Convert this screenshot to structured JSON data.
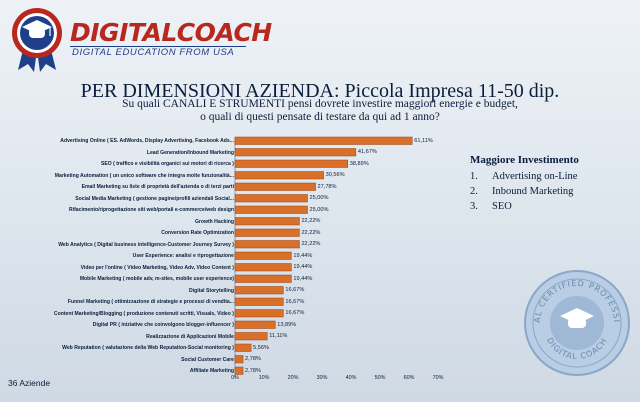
{
  "brand": {
    "title_part1": "DIGITAL",
    "title_part2": "COACH",
    "subtitle": "DIGITAL EDUCATION FROM USA"
  },
  "title": "PER DIMENSIONI AZIENDA: Piccola Impresa 11-50 dip.",
  "subtitle_line1": "Su quali CANALI E STRUMENTI pensi dovrete investire maggiori energie e budget,",
  "subtitle_line2": "o quali di questi pensate di testare da qui ad 1 anno?",
  "legend": {
    "title": "Maggiore Investimento",
    "items": [
      {
        "num": "1.",
        "label": "Advertising on-Line"
      },
      {
        "num": "2.",
        "label": "Inbound Marketing"
      },
      {
        "num": "3.",
        "label": "SEO"
      }
    ]
  },
  "footer": "36 Aziende",
  "seal_text": {
    "top": "DIGITAL CERTIFIED PROFESSIONAL",
    "bottom": "DIGITAL COACH"
  },
  "chart_data": {
    "type": "bar",
    "orientation": "horizontal",
    "categories": [
      "Advertising Online ( ES. AdWords, Display Advertising, Facebook Ads...",
      "Lead Generation/Inbound Marketing",
      "SEO ( traffico e visibilità organici sui motori di ricerca )",
      "Marketing Automation ( un unico software che integra molte funzionalità...",
      "Email Marketing su liste di proprietà dell'azienda o di terzi parti",
      "Social Media Marketing ( gestione pagine/profili aziendali Social...",
      "Rifacimento/riprogettazione siti web/portali e-commerce/web design",
      "Growth Hacking",
      "Conversion Rate Optimization",
      "Web Analytics ( Digital business intelligence-Customer Journey Survey )",
      "User Experience: analisi e riprogettazione",
      "Video per l'online ( Video Marketing, Video Adv, Video Content )",
      "Mobile Marketing ( mobile adv, m-sites, mobile user experience)",
      "Digital Storytelling",
      "Funnel Marketing ( ottimizzazione di strategie e processi di vendita...",
      "Content Marketing/Blogging ( produzione contenuti scritti, Visuals, Video )",
      "Digital PR ( iniziative che coinvolgono blogger-influencer )",
      "Realizzazione di Applicazioni Mobile",
      "Web Reputation ( valutazione della Web Reputation-Social monitoring )",
      "Social Customer Care",
      "Affiliate Marketing"
    ],
    "values": [
      61.11,
      41.67,
      38.89,
      30.56,
      27.78,
      25.0,
      25.0,
      22.22,
      22.22,
      22.22,
      19.44,
      19.44,
      19.44,
      16.67,
      16.67,
      16.67,
      13.89,
      11.11,
      5.56,
      2.78,
      2.78
    ],
    "value_labels": [
      "61,11%",
      "41,67%",
      "38,89%",
      "30,56%",
      "27,78%",
      "25,00%",
      "25,00%",
      "22,22%",
      "22,22%",
      "22,22%",
      "19,44%",
      "19,44%",
      "19,44%",
      "16,67%",
      "16,67%",
      "16,67%",
      "13,89%",
      "11,11%",
      "5,56%",
      "2,78%",
      "2,78%"
    ],
    "x_ticks": [
      "0%",
      "10%",
      "20%",
      "30%",
      "40%",
      "50%",
      "60%",
      "70%"
    ],
    "xlim": [
      0,
      70
    ],
    "grid": false,
    "colors": {
      "bar": "#d9702a",
      "bar_edge": "#9c4310",
      "axis": "#5a6a80"
    }
  }
}
